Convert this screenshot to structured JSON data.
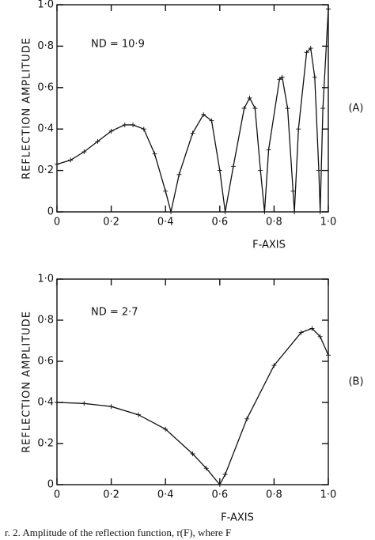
{
  "chart_data": [
    {
      "type": "line",
      "annotation": "ND = 10·9",
      "panel_label": "(A)",
      "y_label": "REFLECTION  AMPLITUDE",
      "x_label": "F-AXIS",
      "color": "#111111",
      "x": [
        0,
        0.05,
        0.1,
        0.15,
        0.2,
        0.25,
        0.28,
        0.32,
        0.36,
        0.4,
        0.42,
        0.45,
        0.5,
        0.54,
        0.57,
        0.6,
        0.62,
        0.65,
        0.69,
        0.71,
        0.73,
        0.75,
        0.765,
        0.78,
        0.82,
        0.83,
        0.85,
        0.87,
        0.875,
        0.89,
        0.92,
        0.935,
        0.95,
        0.965,
        0.97,
        0.98,
        1.0
      ],
      "values": [
        0.23,
        0.25,
        0.29,
        0.34,
        0.39,
        0.42,
        0.42,
        0.4,
        0.28,
        0.1,
        0.0,
        0.18,
        0.38,
        0.47,
        0.44,
        0.2,
        0.0,
        0.22,
        0.5,
        0.55,
        0.5,
        0.2,
        0.0,
        0.3,
        0.64,
        0.65,
        0.5,
        0.1,
        0.0,
        0.4,
        0.77,
        0.79,
        0.65,
        0.2,
        0.0,
        0.5,
        0.98
      ],
      "xlim": [
        0,
        1.0
      ],
      "ylim": [
        0,
        1.0
      ],
      "xticks": [
        0,
        {
          "value": 0.2,
          "label": "0·2"
        },
        {
          "value": 0.4,
          "label": "0·4"
        },
        {
          "value": 0.6,
          "label": "0·6"
        },
        {
          "value": 0.8,
          "label": "0·8"
        },
        {
          "value": 1.0,
          "label": "1·0"
        }
      ],
      "yticks": [
        0,
        {
          "value": 0.2,
          "label": "0·2"
        },
        {
          "value": 0.4,
          "label": "0·4"
        },
        {
          "value": 0.6,
          "label": "0·6"
        },
        {
          "value": 0.8,
          "label": "0·8"
        },
        {
          "value": 1.0,
          "label": "1·0"
        }
      ]
    },
    {
      "type": "line",
      "annotation": "ND = 2·7",
      "panel_label": "(B)",
      "y_label": "REFLECTION  AMPLITUDE",
      "x_label": "F-AXIS",
      "color": "#111111",
      "x": [
        0,
        0.1,
        0.2,
        0.3,
        0.4,
        0.5,
        0.55,
        0.6,
        0.62,
        0.7,
        0.8,
        0.9,
        0.94,
        0.97,
        1.0
      ],
      "values": [
        0.4,
        0.395,
        0.38,
        0.34,
        0.27,
        0.15,
        0.08,
        0.0,
        0.05,
        0.32,
        0.58,
        0.74,
        0.76,
        0.72,
        0.63
      ],
      "xlim": [
        0,
        1.0
      ],
      "ylim": [
        0,
        1.0
      ],
      "xticks": [
        0,
        {
          "value": 0.2,
          "label": "0·2"
        },
        {
          "value": 0.4,
          "label": "0·4"
        },
        {
          "value": 0.6,
          "label": "0·6"
        },
        {
          "value": 0.8,
          "label": "0·8"
        },
        {
          "value": 1.0,
          "label": "1·0"
        }
      ],
      "yticks": [
        0,
        {
          "value": 0.2,
          "label": "0·2"
        },
        {
          "value": 0.4,
          "label": "0·4"
        },
        {
          "value": 0.6,
          "label": "0·6"
        },
        {
          "value": 0.8,
          "label": "0·8"
        },
        {
          "value": 1.0,
          "label": "1·0"
        }
      ]
    }
  ],
  "caption": "r. 2.  Amplitude of the reflection function, r(F), where F"
}
